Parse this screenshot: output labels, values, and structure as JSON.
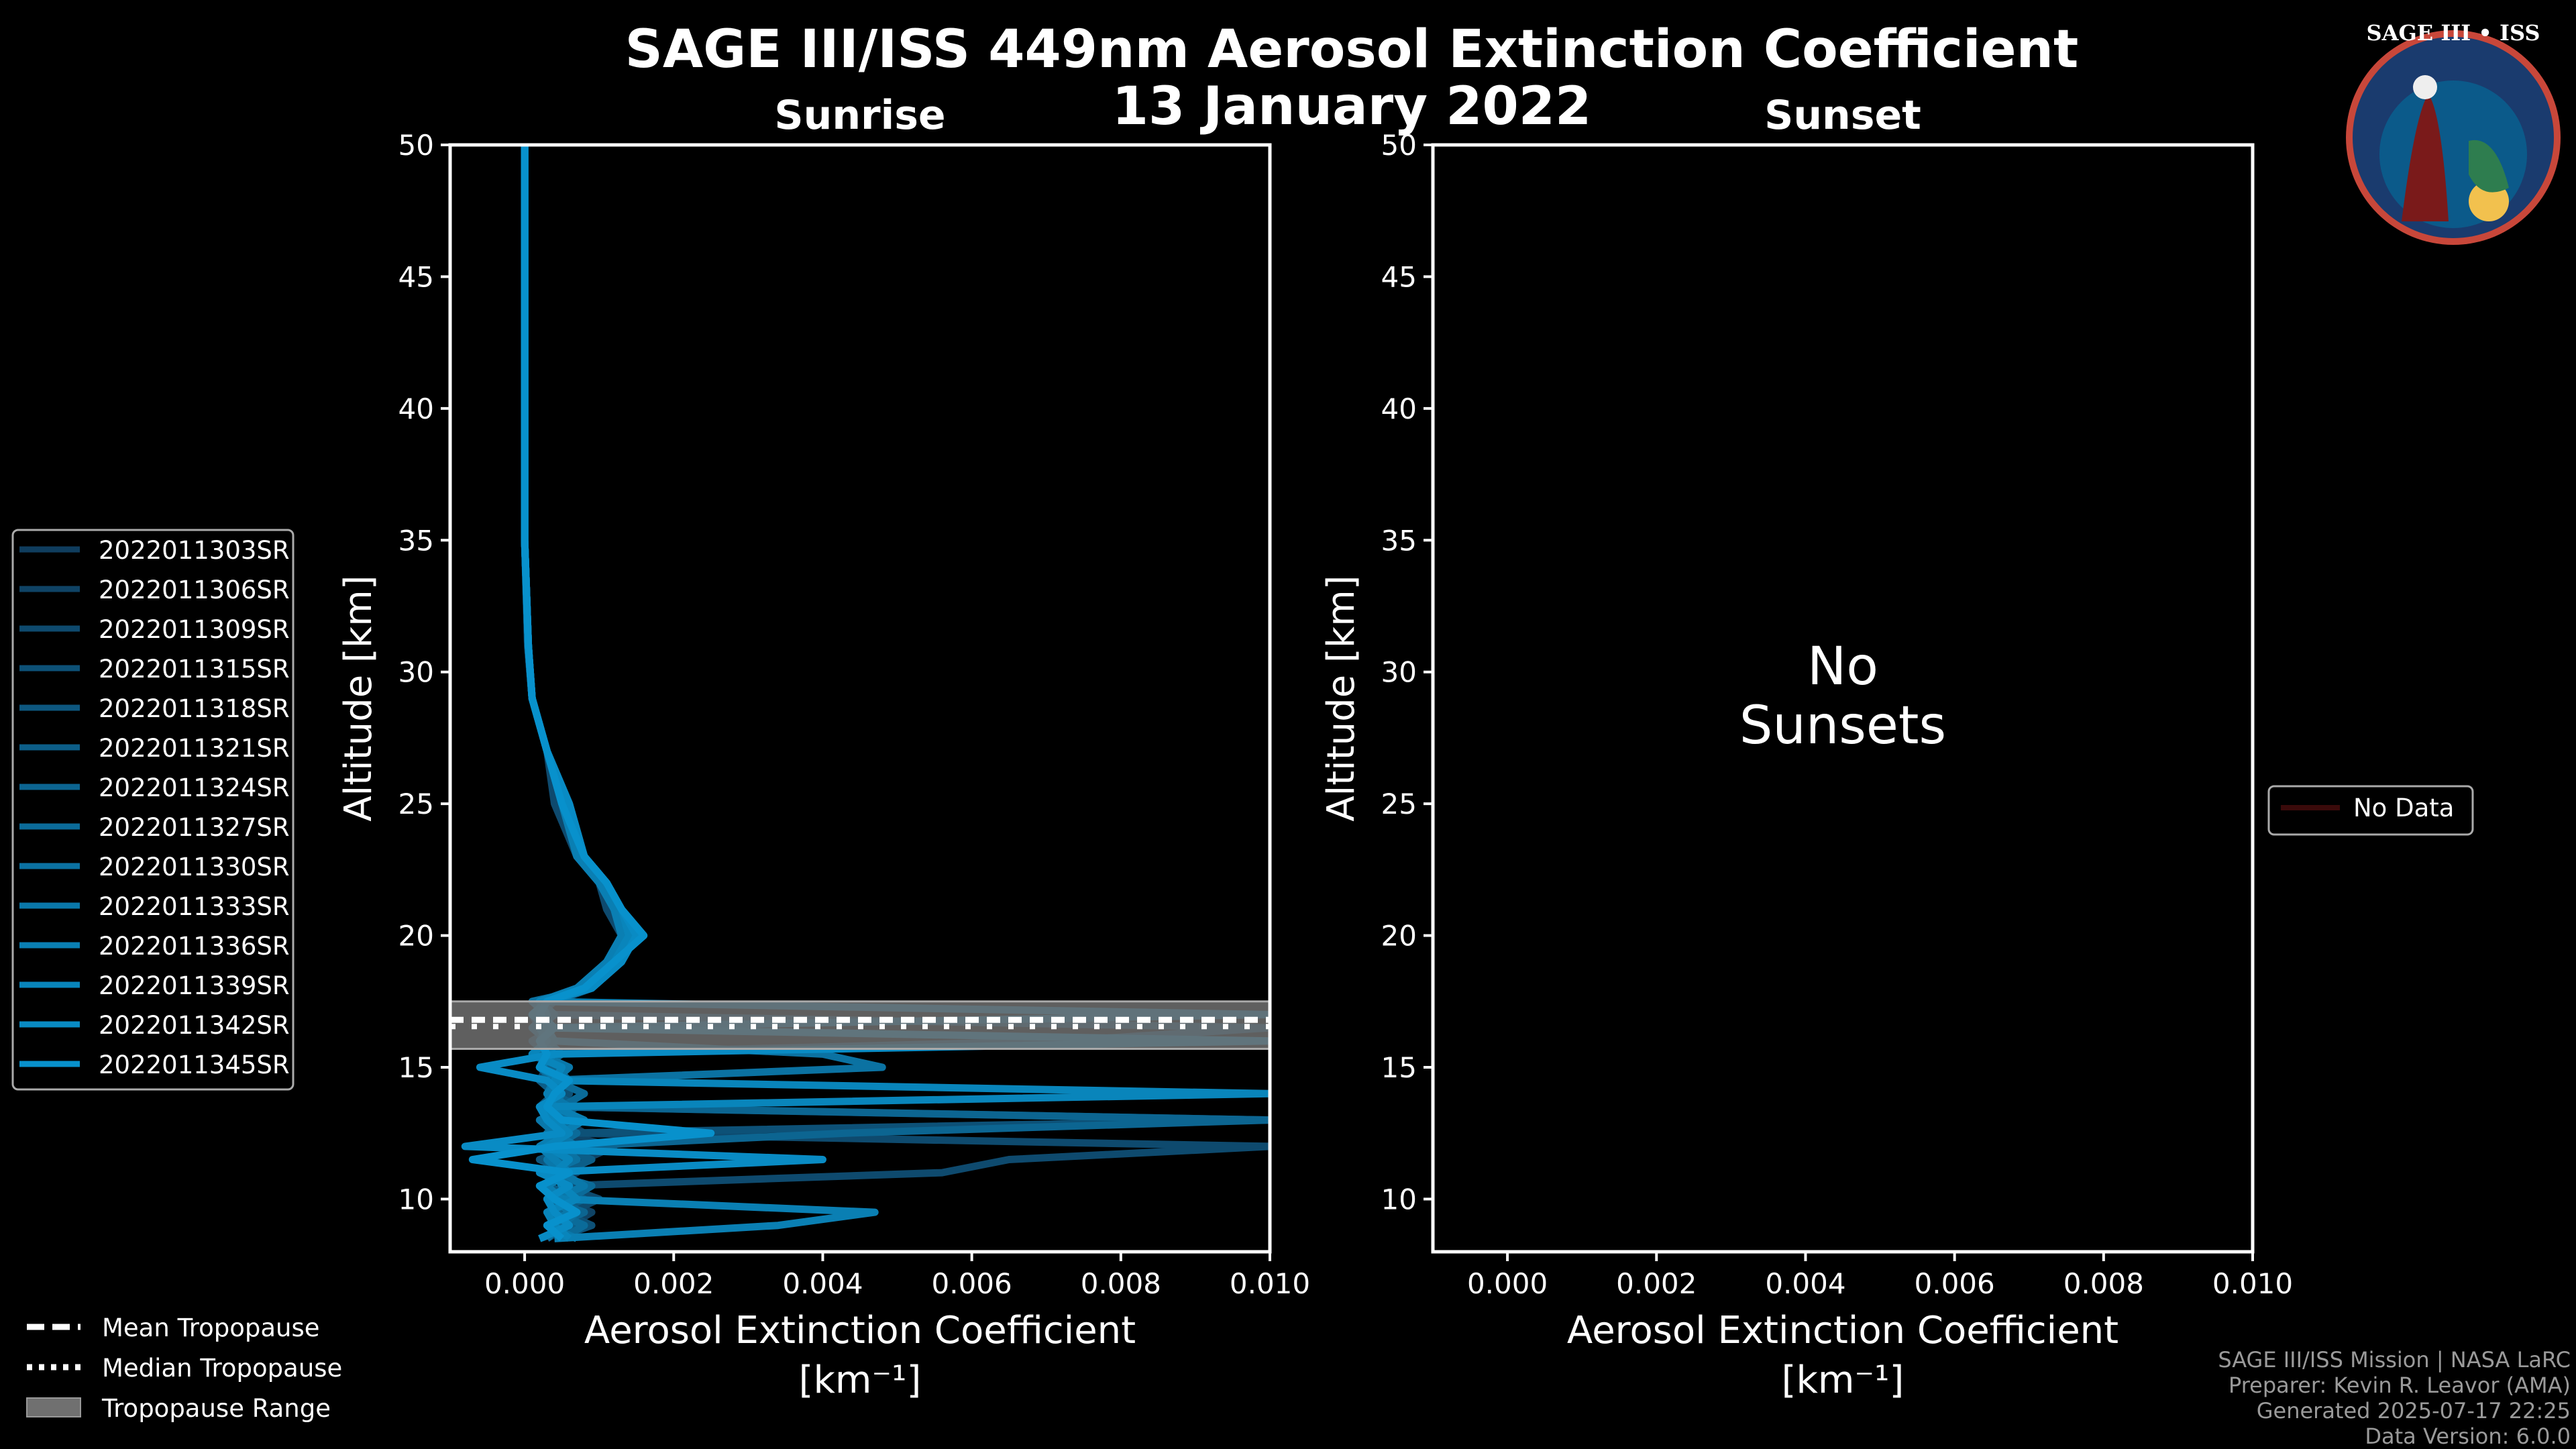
{
  "title_line1": "SAGE III/ISS 449nm Aerosol Extinction Coefficient",
  "title_line2": "13 January 2022",
  "logo_text": "SAGE III • ISS",
  "credits": [
    "SAGE III/ISS Mission | NASA LaRC",
    "Preparer: Kevin R. Leavor (AMA)",
    "Generated 2025-07-17 22:25",
    "Data Version: 6.0.0"
  ],
  "tropopause_legend": {
    "mean": "Mean Tropopause",
    "median": "Median Tropopause",
    "range": "Tropopause Range"
  },
  "colors": {
    "tropopause_range": "#707070",
    "no_data": "#3a0a0a",
    "series_start": "#0d3d5c",
    "series_end": "#0a8fd0"
  },
  "chart_data": [
    {
      "type": "line",
      "title": "Sunrise",
      "xlabel": "Aerosol Extinction Coefficient",
      "xunit": "[km⁻¹]",
      "ylabel": "Altitude [km]",
      "xlim": [
        -0.001,
        0.01
      ],
      "ylim": [
        8,
        50
      ],
      "xticks": [
        "0.000",
        "0.002",
        "0.004",
        "0.006",
        "0.008",
        "0.010"
      ],
      "xtick_values": [
        0,
        0.002,
        0.004,
        0.006,
        0.008,
        0.01
      ],
      "yticks": [
        10,
        15,
        20,
        25,
        30,
        35,
        40,
        45,
        50
      ],
      "tropopause": {
        "mean": 16.7,
        "median": 16.7,
        "range": [
          15.7,
          17.5
        ]
      },
      "altitude": [
        8.5,
        9,
        9.5,
        10,
        10.5,
        11,
        11.5,
        12,
        12.5,
        13,
        13.5,
        14,
        14.5,
        15,
        15.5,
        16,
        16.5,
        17,
        17.5,
        18,
        19,
        20,
        21,
        22,
        23,
        25,
        27,
        29,
        31,
        35,
        40,
        45,
        50
      ],
      "series": [
        {
          "name": "2022011303SR",
          "color": "#0f3d5e",
          "values": [
            0.0005,
            0.0008,
            0.0003,
            0.0006,
            0.0002,
            0.0007,
            0.0004,
            0.0003,
            0.0008,
            0.0005,
            0.0002,
            0.0006,
            0.0003,
            0.0004,
            0.0001,
            0.0003,
            0.0002,
            0.0001,
            0.0003,
            0.0008,
            0.0012,
            0.0013,
            0.0012,
            0.001,
            0.0008,
            0.0005,
            0.0003,
            0.0001,
            5e-05,
            0,
            0,
            0,
            0
          ]
        },
        {
          "name": "2022011306SR",
          "color": "#0f4365",
          "values": [
            0.0003,
            0.0006,
            0.0009,
            0.0004,
            0.0007,
            0.0003,
            0.0008,
            0.0012,
            0.0004,
            0.0006,
            0.0003,
            0.0005,
            0.0002,
            0.0003,
            0.0004,
            0.0002,
            0.0003,
            0.0002,
            0.0004,
            0.0009,
            0.0011,
            0.0014,
            0.0012,
            0.0011,
            0.0008,
            0.0005,
            0.0003,
            0.0001,
            5e-05,
            0,
            0,
            0,
            0
          ]
        },
        {
          "name": "2022011309SR",
          "color": "#0e4a6e",
          "values": [
            0.0007,
            0.0004,
            0.0006,
            0.001,
            0.0005,
            0.0056,
            0.0065,
            0.01,
            0.0006,
            0.0004,
            0.0007,
            0.0003,
            0.0005,
            0.0002,
            0.0003,
            0.0001,
            0.0004,
            0.0002,
            0.0003,
            0.0007,
            0.0012,
            0.0013,
            0.0011,
            0.001,
            0.0007,
            0.0004,
            0.0003,
            0.0001,
            4e-05,
            0,
            0,
            0,
            0
          ]
        },
        {
          "name": "2022011315SR",
          "color": "#0d5177",
          "values": [
            0.0004,
            0.0009,
            0.0005,
            0.0003,
            0.0008,
            0.0004,
            0.0006,
            0.0003,
            0.0005,
            0.01,
            0.0004,
            0.0006,
            0.0003,
            0.0005,
            0.0002,
            0.0072,
            0.01,
            0.0003,
            0.0002,
            0.0008,
            0.0012,
            0.0015,
            0.0013,
            0.001,
            0.0008,
            0.0006,
            0.0003,
            0.0001,
            5e-05,
            0,
            0,
            0,
            0
          ]
        },
        {
          "name": "2022011318SR",
          "color": "#0d577f",
          "values": [
            0.0006,
            0.0003,
            0.0007,
            0.0005,
            0.0003,
            0.0006,
            0.0002,
            0.0007,
            0.0004,
            0.0006,
            0.0002,
            0.0004,
            0.0005,
            0.0003,
            0.0002,
            0.0004,
            0.0003,
            0.0001,
            0.0004,
            0.0009,
            0.0013,
            0.0014,
            0.0012,
            0.0011,
            0.0008,
            0.0005,
            0.0003,
            0.0001,
            5e-05,
            0,
            0,
            0,
            0
          ]
        },
        {
          "name": "2022011321SR",
          "color": "#0c5e88",
          "values": [
            0.0002,
            0.0007,
            0.0004,
            0.0008,
            0.0003,
            0.0005,
            0.0009,
            0.0004,
            0.0006,
            0.0003,
            0.0007,
            0.0004,
            0.0002,
            0.0005,
            0.0003,
            0.0002,
            0.0004,
            0.0002,
            0.0003,
            0.0008,
            0.0011,
            0.0013,
            0.0012,
            0.001,
            0.0007,
            0.0005,
            0.0003,
            0.0001,
            5e-05,
            0,
            0,
            0,
            0
          ]
        },
        {
          "name": "2022011324SR",
          "color": "#0c6591",
          "values": [
            0.0006,
            0.0004,
            0.0008,
            0.0003,
            0.0006,
            0.0004,
            0.0003,
            0.0006,
            0.0043,
            0.01,
            0.0005,
            0.0003,
            0.0006,
            0.0004,
            0.0002,
            0.0003,
            0.0001,
            0.0003,
            0.0002,
            0.0007,
            0.0012,
            0.0014,
            0.0013,
            0.0011,
            0.0008,
            0.0005,
            0.0003,
            0.0001,
            5e-05,
            0,
            0,
            0,
            0
          ]
        },
        {
          "name": "2022011327SR",
          "color": "#0b6b99",
          "values": [
            0.0005,
            0.0008,
            0.0004,
            0.0006,
            0.0009,
            0.0003,
            0.0005,
            0.0004,
            0.0007,
            0.0003,
            0.0005,
            0.0008,
            0.0004,
            0.0002,
            0.0005,
            0.0003,
            0.0002,
            0.0004,
            0.0002,
            0.0008,
            0.0012,
            0.0013,
            0.0012,
            0.001,
            0.0008,
            0.0005,
            0.0003,
            0.0001,
            5e-05,
            0,
            0,
            0,
            0
          ]
        },
        {
          "name": "2022011330SR",
          "color": "#0b72a2",
          "values": [
            0.0003,
            0.0005,
            0.0007,
            0.0004,
            0.0006,
            0.0003,
            0.0007,
            0.0005,
            0.0003,
            0.0006,
            0.0004,
            0.0005,
            0.0003,
            0.0048,
            0.004,
            0.0004,
            0.0002,
            0.0003,
            0.0001,
            0.0009,
            0.0013,
            0.0015,
            0.0013,
            0.0011,
            0.0008,
            0.0006,
            0.0003,
            0.0001,
            5e-05,
            0,
            0,
            0,
            0
          ]
        },
        {
          "name": "2022011333SR",
          "color": "#0a78aa",
          "values": [
            0.0007,
            0.0003,
            0.0006,
            0.0004,
            0.0008,
            0.0005,
            0.0003,
            0.0007,
            0.0004,
            0.0002,
            0.0006,
            0.0003,
            0.0004,
            0.0006,
            0.0002,
            0.0004,
            0.0003,
            0.0002,
            0.0003,
            0.0008,
            0.0012,
            0.0014,
            0.0012,
            0.001,
            0.0008,
            0.0005,
            0.0003,
            0.0001,
            5e-05,
            0,
            0,
            0,
            0
          ]
        },
        {
          "name": "2022011336SR",
          "color": "#0a7fb3",
          "values": [
            0.0004,
            0.0034,
            0.0047,
            0.0005,
            0.0003,
            0.0006,
            0.0004,
            0.0002,
            0.0005,
            0.0008,
            0.0004,
            0.0003,
            0.0005,
            0.0002,
            0.0004,
            0.0002,
            0.0003,
            0.01,
            0.0002,
            0.0007,
            0.0011,
            0.0013,
            0.0012,
            0.001,
            0.0007,
            0.0005,
            0.0003,
            0.0001,
            5e-05,
            0,
            0,
            0,
            0
          ]
        },
        {
          "name": "2022011339SR",
          "color": "#0985bb",
          "values": [
            0.0006,
            0.0004,
            0.0003,
            0.0007,
            0.0005,
            0.0004,
            0.0006,
            0.0003,
            0.0006,
            0.0004,
            0.0003,
            0.01,
            0.0004,
            0.0005,
            0.0001,
            0.0003,
            0.0002,
            0.0003,
            0.0002,
            0.0008,
            0.0012,
            0.0014,
            0.0013,
            0.0011,
            0.0008,
            0.0005,
            0.0003,
            0.0001,
            5e-05,
            0,
            0,
            0,
            0
          ]
        },
        {
          "name": "2022011342SR",
          "color": "#098bc4",
          "values": [
            0.0002,
            0.0006,
            0.0004,
            0.0003,
            0.0006,
            0.0002,
            0.004,
            -0.0008,
            0.0005,
            0.0003,
            0.0002,
            0.0005,
            0.0003,
            -0.0006,
            0.0004,
            0.01,
            0.0003,
            0.0001,
            0.0003,
            0.0009,
            0.0013,
            0.0015,
            0.0013,
            0.0011,
            0.0008,
            0.0006,
            0.0003,
            0.0001,
            5e-05,
            0,
            0,
            0,
            0
          ]
        },
        {
          "name": "2022011345SR",
          "color": "#0891cc",
          "values": [
            0.0005,
            0.0003,
            0.0007,
            0.0004,
            0.0002,
            0.0006,
            -0.0007,
            0.0004,
            0.0025,
            0.0005,
            0.0003,
            0.0004,
            0.0006,
            0.0002,
            0.0003,
            0.0002,
            0.0004,
            0.0002,
            0.0003,
            0.0008,
            0.0012,
            0.0016,
            0.0013,
            0.0011,
            0.0008,
            0.0005,
            0.0003,
            0.0001,
            5e-05,
            0,
            0,
            0,
            0
          ]
        }
      ]
    },
    {
      "type": "line",
      "title": "Sunset",
      "xlabel": "Aerosol Extinction Coefficient",
      "xunit": "[km⁻¹]",
      "ylabel": "Altitude [km]",
      "xlim": [
        -0.001,
        0.01
      ],
      "ylim": [
        8,
        50
      ],
      "xticks": [
        "0.000",
        "0.002",
        "0.004",
        "0.006",
        "0.008",
        "0.010"
      ],
      "xtick_values": [
        0,
        0.002,
        0.004,
        0.006,
        0.008,
        0.01
      ],
      "yticks": [
        10,
        15,
        20,
        25,
        30,
        35,
        40,
        45,
        50
      ],
      "annotation_line1": "No",
      "annotation_line2": "Sunsets",
      "legend": [
        "No Data"
      ],
      "series": []
    }
  ]
}
